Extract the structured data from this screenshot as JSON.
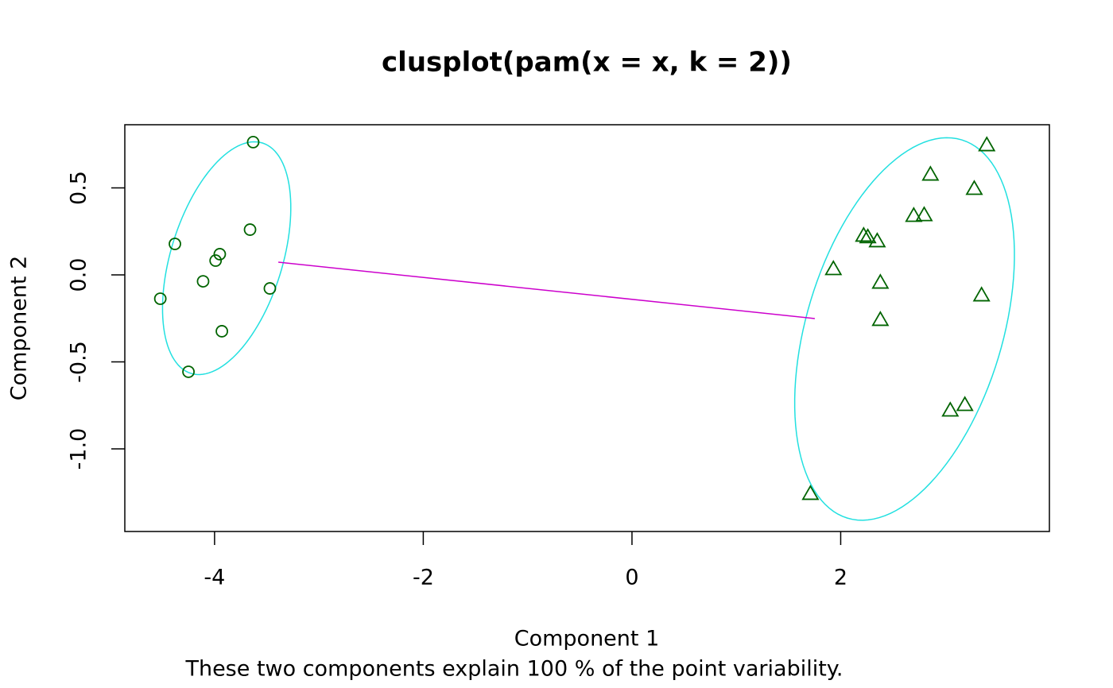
{
  "chart_data": {
    "type": "scatter",
    "title": "clusplot(pam(x = x, k = 2))",
    "x_label": "Component 1",
    "y_label": "Component 2",
    "note": "These two components explain 100 % of the point variability.",
    "xlim": [
      -4.86,
      4.0
    ],
    "ylim": [
      -1.475,
      0.863
    ],
    "xticks": [
      -4,
      -2,
      0,
      2
    ],
    "yticks": [
      {
        "value": -1,
        "label": "-1.0"
      },
      -0.5,
      {
        "value": 0,
        "label": "0.0"
      },
      0.5
    ],
    "series": [
      {
        "marker": "circle",
        "color": "#006400",
        "x": [
          -3.63,
          -4.38,
          -3.66,
          -3.95,
          -3.99,
          -4.11,
          -4.52,
          -3.47,
          -3.93,
          -4.25
        ],
        "y": [
          0.763,
          0.178,
          0.26,
          0.119,
          0.082,
          -0.037,
          -0.137,
          -0.078,
          -0.324,
          -0.557
        ]
      },
      {
        "marker": "triangle",
        "color": "#006400",
        "x": [
          3.4,
          2.86,
          3.28,
          2.7,
          2.8,
          2.22,
          2.26,
          2.35,
          1.93,
          2.38,
          3.35,
          2.38,
          3.19,
          3.05,
          1.71
        ],
        "y": [
          0.744,
          0.575,
          0.493,
          0.338,
          0.342,
          0.224,
          0.215,
          0.192,
          0.032,
          -0.046,
          -0.119,
          -0.26,
          -0.749,
          -0.781,
          -1.26
        ]
      }
    ],
    "ellipses": [
      {
        "center": [
          -3.884,
          0.096
        ],
        "a": [
          0.343,
          0.662
        ],
        "b": [
          0.51,
          -0.096
        ],
        "color": "#22e0e0"
      },
      {
        "center": [
          2.612,
          -0.311
        ],
        "a": [
          0.548,
          1.087
        ],
        "b": [
          0.899,
          -0.164
        ],
        "color": "#22e0e0"
      }
    ],
    "lines": [
      {
        "x": [
          -3.389,
          1.752
        ],
        "y": [
          0.073,
          -0.251
        ],
        "color": "#cc00cc"
      }
    ]
  }
}
